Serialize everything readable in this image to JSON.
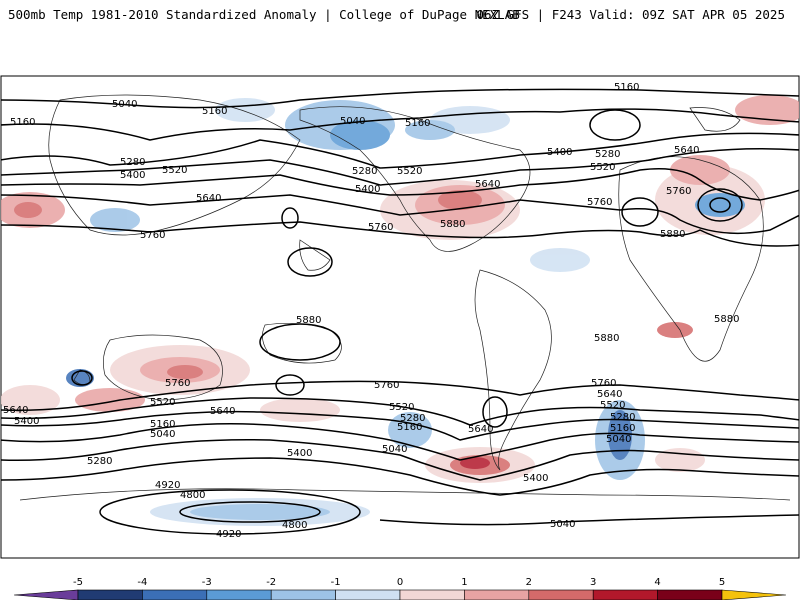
{
  "header": {
    "title": "500mb Temp 1981-2010 Standardized Anomaly | College of DuPage NEXLAB",
    "run": "06Z GFS | F243 Valid: 09Z SAT APR 05 2025"
  },
  "colorbar": {
    "ticks": [
      "-5",
      "-4",
      "-3",
      "-2",
      "-1",
      "0",
      "1",
      "2",
      "3",
      "4",
      "5"
    ],
    "colors": [
      "#6a3d9a",
      "#203b73",
      "#3b6fb6",
      "#5b9bd5",
      "#9dc3e6",
      "#cfe0f2",
      "#f2d7d5",
      "#e8a3a3",
      "#d46a6a",
      "#b2182b",
      "#7a0019",
      "#f4c20d"
    ]
  },
  "contour_labels": [
    "5040",
    "5160",
    "5040",
    "5160",
    "5160",
    "5160",
    "5160",
    "5280",
    "5400",
    "5520",
    "5640",
    "5760",
    "5040",
    "5280",
    "5400",
    "5520",
    "5640",
    "5880",
    "5400",
    "5280",
    "5520",
    "5640",
    "5760",
    "5880",
    "5760",
    "5760",
    "5880",
    "5880",
    "5880",
    "5760",
    "5520",
    "5640",
    "5640",
    "5400",
    "5160",
    "5040",
    "5280",
    "5760",
    "5520",
    "5280",
    "5160",
    "5040",
    "5400",
    "5640",
    "5400",
    "5040",
    "5760",
    "5640",
    "5520",
    "5280",
    "5160",
    "5040",
    "4920",
    "4800",
    "4800",
    "4920",
    "5040"
  ]
}
